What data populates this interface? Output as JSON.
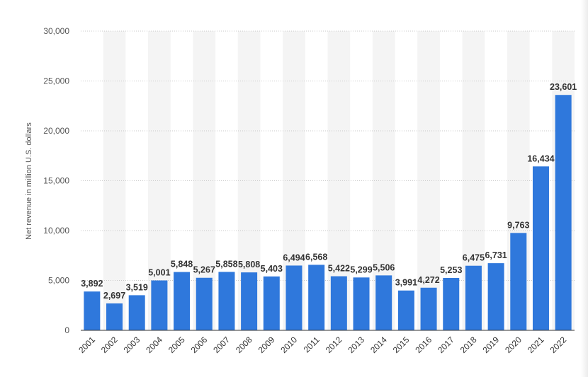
{
  "chart_data": {
    "type": "bar",
    "title": "",
    "xlabel": "",
    "ylabel": "Net revenue in million U.S. dollars",
    "ylim": [
      0,
      30000
    ],
    "yticks": [
      0,
      5000,
      10000,
      15000,
      20000,
      25000,
      30000
    ],
    "ytick_labels": [
      "0",
      "5,000",
      "10,000",
      "15,000",
      "20,000",
      "25,000",
      "30,000"
    ],
    "categories": [
      "2001",
      "2002",
      "2003",
      "2004",
      "2005",
      "2006",
      "2007",
      "2008",
      "2009",
      "2010",
      "2011",
      "2012",
      "2013",
      "2014",
      "2015",
      "2016",
      "2017",
      "2018",
      "2019",
      "2020",
      "2021",
      "2022"
    ],
    "values": [
      3892,
      2697,
      3519,
      5001,
      5848,
      5267,
      5858,
      5808,
      5403,
      6494,
      6568,
      5422,
      5299,
      5506,
      3991,
      4272,
      5253,
      6475,
      6731,
      9763,
      16434,
      23601
    ],
    "value_labels": [
      "3,892",
      "2,697",
      "3,519",
      "5,001",
      "5,848",
      "5,267",
      "5,858",
      "5,808",
      "5,403",
      "6,494",
      "6,568",
      "5,422",
      "5,299",
      "5,506",
      "3,991",
      "4,272",
      "5,253",
      "6,475",
      "6,731",
      "9,763",
      "16,434",
      "23,601"
    ],
    "bar_color": "#2f78dc",
    "band_color": "#f4f4f4",
    "grid": true,
    "legend": "none"
  }
}
